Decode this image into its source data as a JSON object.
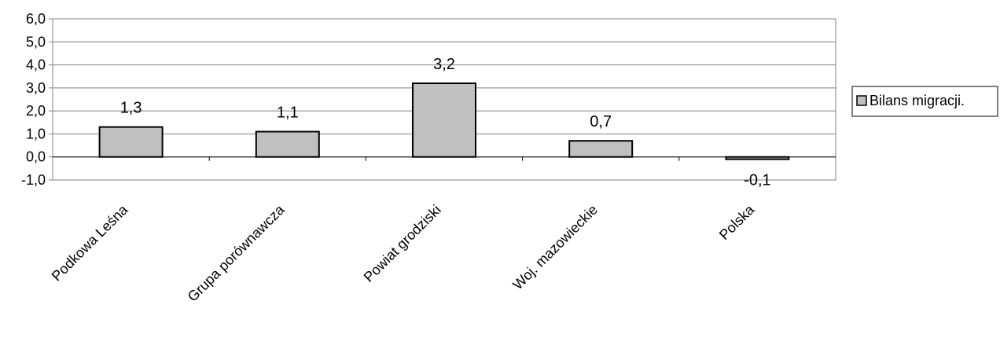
{
  "chart_data": {
    "type": "bar",
    "categories": [
      "Podkowa Leśna",
      "Grupa porównawcza",
      "Powiat grodziski",
      "Woj. mazowieckie",
      "Polska"
    ],
    "series": [
      {
        "name": "Bilans migracji.",
        "values": [
          1.3,
          1.1,
          3.2,
          0.7,
          -0.1
        ],
        "data_labels": [
          "1,3",
          "1,1",
          "3,2",
          "0,7",
          "-0,1"
        ]
      }
    ],
    "ylim": [
      -1.0,
      6.0
    ],
    "yticks": [
      -1.0,
      0.0,
      1.0,
      2.0,
      3.0,
      4.0,
      5.0,
      6.0
    ],
    "ytick_labels": [
      "-1,0",
      "0,0",
      "1,0",
      "2,0",
      "3,0",
      "4,0",
      "5,0",
      "6,0"
    ],
    "grid": true,
    "legend": "right",
    "colors": {
      "bar_fill": "#c0c0c0",
      "bar_stroke": "#000000",
      "grid": "#808080",
      "axis": "#808080"
    }
  }
}
